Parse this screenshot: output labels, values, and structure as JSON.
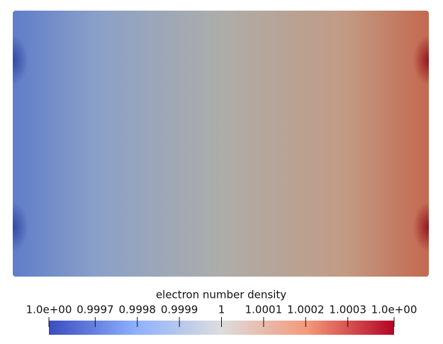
{
  "chart_data": {
    "type": "colorbar",
    "axis_label": "electron number density",
    "xlim": [
      0.99959,
      1.00041
    ],
    "xticks": [
      {
        "value": 0.99959,
        "label": "1.0e+00"
      },
      0.9997,
      0.9998,
      0.9999,
      1,
      1.0001,
      1.0002,
      1.0003,
      {
        "value": 1.00041,
        "label": "1.0e+00"
      }
    ],
    "colormap": [
      "#3b4cc0",
      "#8db0fe",
      "#dddddd",
      "#f4987a",
      "#b40426"
    ]
  }
}
